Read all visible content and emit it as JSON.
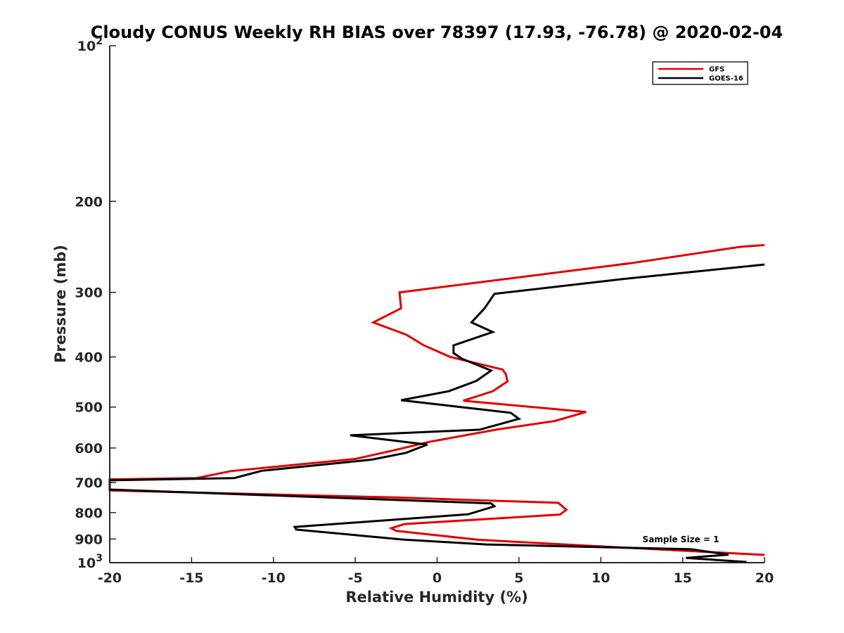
{
  "chart_data": {
    "type": "line",
    "title": "Cloudy CONUS Weekly RH BIAS over 78397 (17.93, -76.78) @ 2020-02-04",
    "xlabel": "Relative Humidity (%)",
    "ylabel": "Pressure (mb)",
    "xlim": [
      -20,
      20
    ],
    "ylim": [
      100,
      1000
    ],
    "yscale": "log",
    "y_reversed": true,
    "grid": false,
    "legend_position": "top-right",
    "x_ticks": [
      "-20",
      "-15",
      "-10",
      "-5",
      "0",
      "5",
      "10",
      "15",
      "20"
    ],
    "y_ticks": [
      {
        "value": 100,
        "base": "10",
        "exp": "2"
      },
      {
        "value": 200,
        "label": "200"
      },
      {
        "value": 300,
        "label": "300"
      },
      {
        "value": 400,
        "label": "400"
      },
      {
        "value": 500,
        "label": "500"
      },
      {
        "value": 600,
        "label": "600"
      },
      {
        "value": 700,
        "label": "700"
      },
      {
        "value": 800,
        "label": "800"
      },
      {
        "value": 900,
        "label": "900"
      },
      {
        "value": 1000,
        "base": "10",
        "exp": "3"
      }
    ],
    "series": [
      {
        "name": "GFS",
        "color": "#e00000",
        "points": [
          [
            20,
            243
          ],
          [
            18.5,
            245
          ],
          [
            12,
            263
          ],
          [
            -2.3,
            300
          ],
          [
            -2.2,
            322
          ],
          [
            -3.9,
            343
          ],
          [
            -1.9,
            362
          ],
          [
            -0.8,
            380
          ],
          [
            0.8,
            400
          ],
          [
            4.0,
            423
          ],
          [
            4.2,
            432
          ],
          [
            4.3,
            446
          ],
          [
            3.4,
            466
          ],
          [
            1.6,
            486
          ],
          [
            9.1,
            511
          ],
          [
            7.2,
            532
          ],
          [
            3.6,
            553
          ],
          [
            -0.5,
            584
          ],
          [
            -2.6,
            606
          ],
          [
            -5.0,
            630
          ],
          [
            -12.6,
            665
          ],
          [
            -14.7,
            686
          ],
          [
            -20,
            690
          ],
          [
            -20,
            720
          ],
          [
            -20,
            725
          ],
          [
            -2.5,
            748
          ],
          [
            3.0,
            758
          ],
          [
            7.4,
            766
          ],
          [
            7.9,
            790
          ],
          [
            7.5,
            807
          ],
          [
            -2.0,
            842
          ],
          [
            -2.8,
            858
          ],
          [
            -2.5,
            868
          ],
          [
            2.5,
            903
          ],
          [
            8.0,
            923
          ],
          [
            20,
            966
          ]
        ]
      },
      {
        "name": "GOES-16",
        "color": "#000000",
        "points": [
          [
            20,
            265
          ],
          [
            11.2,
            283
          ],
          [
            3.5,
            302
          ],
          [
            2.9,
            322
          ],
          [
            2.1,
            343
          ],
          [
            3.4,
            358
          ],
          [
            1.0,
            380
          ],
          [
            1.0,
            393
          ],
          [
            1.5,
            403
          ],
          [
            3.3,
            425
          ],
          [
            2.4,
            445
          ],
          [
            0.7,
            466
          ],
          [
            -2.2,
            485
          ],
          [
            4.5,
            513
          ],
          [
            5.0,
            527
          ],
          [
            2.6,
            553
          ],
          [
            -5.3,
            567
          ],
          [
            -0.6,
            591
          ],
          [
            -1.9,
            613
          ],
          [
            -4.0,
            632
          ],
          [
            -10.7,
            664
          ],
          [
            -12.4,
            686
          ],
          [
            -20,
            693
          ],
          [
            -20,
            718
          ],
          [
            -20,
            722
          ],
          [
            3.3,
            768
          ],
          [
            3.5,
            778
          ],
          [
            1.9,
            806
          ],
          [
            -8.7,
            853
          ],
          [
            -8.6,
            863
          ],
          [
            -2.1,
            902
          ],
          [
            3.0,
            922
          ],
          [
            15.5,
            942
          ],
          [
            17.8,
            965
          ],
          [
            15.2,
            979
          ],
          [
            18.9,
            997
          ]
        ]
      }
    ],
    "annotations": [
      "Sample Size = 1"
    ]
  }
}
